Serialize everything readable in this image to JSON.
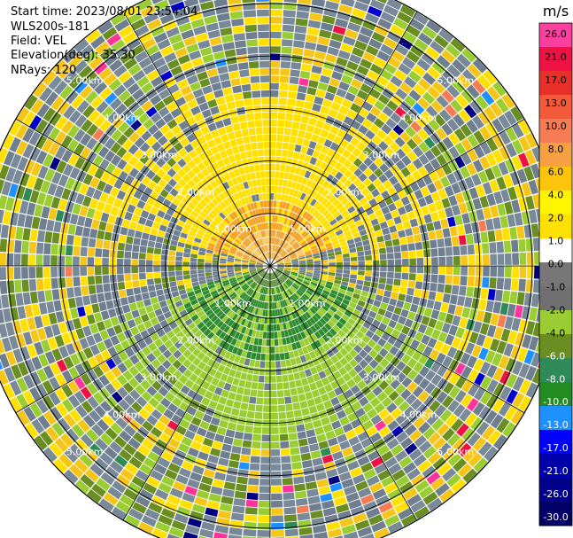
{
  "header": {
    "start_time": "Start time: 2023/08/01 23:54:04",
    "device": "WLS200s-181",
    "field": "Field: VEL",
    "elevation": "Elevation(deg): 35.30",
    "nrays": "NRays: 120"
  },
  "chart_data": {
    "type": "heatmap",
    "projection": "polar-ppi",
    "field": "VEL",
    "n_rays": 120,
    "range_rings_km": [
      1.0,
      2.0,
      3.0,
      4.0,
      5.0
    ],
    "max_range_km": 5.6,
    "ring_labels": [
      "1.00km",
      "2.00km",
      "3.00km",
      "4.00km",
      "5.00km"
    ],
    "spoke_angles_deg": [
      0,
      30,
      60,
      90,
      120,
      150,
      180,
      210,
      240,
      270,
      300,
      330
    ],
    "colorbar": {
      "unit": "m/s",
      "tick_labels": [
        "26.0",
        "21.0",
        "17.0",
        "13.0",
        "10.0",
        "8.0",
        "6.0",
        "4.0",
        "2.0",
        "1.0",
        "0.0",
        "-1.0",
        "-2.0",
        "-4.0",
        "-6.0",
        "-8.0",
        "-10.0",
        "-13.0",
        "-17.0",
        "-21.0",
        "-26.0",
        "-30.0"
      ],
      "colors": [
        "#ff3f9f",
        "#ee1144",
        "#e8302a",
        "#f45a3a",
        "#f57c54",
        "#f8a044",
        "#fcc40a",
        "#fff500",
        "#ffe000",
        "#ffffff",
        "#777777",
        "#707070",
        "#9acd32",
        "#6b8e23",
        "#2e8b57",
        "#228b22",
        "#1e90ff",
        "#0000ff",
        "#0000aa",
        "#00008b",
        "#000066"
      ]
    },
    "colors": {
      "positive_near": "#ffe000",
      "positive_core": "#f5a020",
      "negative_near": "#9acd32",
      "negative_core": "#2e8b2e",
      "noise": "#6f7f8f"
    }
  }
}
